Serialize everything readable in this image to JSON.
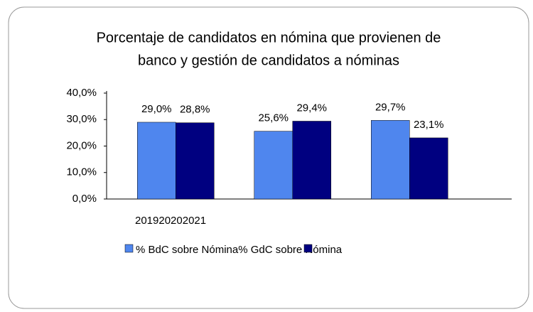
{
  "chart_data": {
    "type": "bar",
    "title": [
      "Porcentaje de candidatos en nómina que provienen de",
      "banco y gestión de candidatos a nóminas"
    ],
    "categories": [
      "2019",
      "2020",
      "2021"
    ],
    "series": [
      {
        "name": "% BdC sobre Nómina",
        "color": "#4f86ee",
        "values": [
          29.0,
          25.6,
          29.7
        ],
        "value_labels": [
          "29,0%",
          "25,6%",
          "29,7%"
        ]
      },
      {
        "name": "% GdC sobre Nómina",
        "color": "#000080",
        "values": [
          28.8,
          29.4,
          23.1
        ],
        "value_labels": [
          "28,8%",
          "29,4%",
          "23,1%"
        ]
      }
    ],
    "ylim": [
      0,
      40
    ],
    "yticks": [
      {
        "value": 0,
        "label": "0,0%"
      },
      {
        "value": 10,
        "label": "10,0%"
      },
      {
        "value": 20,
        "label": "20,0%"
      },
      {
        "value": 30,
        "label": "30,0%"
      },
      {
        "value": 40,
        "label": "40,0%"
      }
    ]
  }
}
